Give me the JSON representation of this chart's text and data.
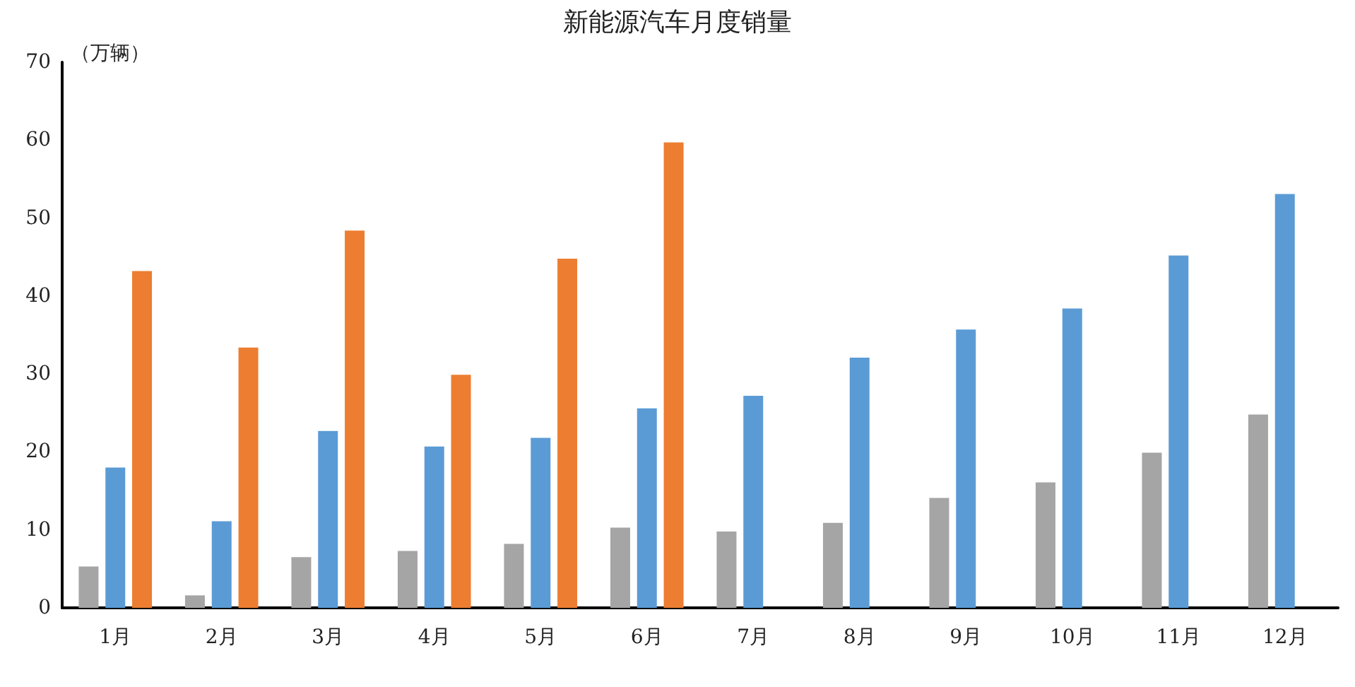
{
  "chart_data": {
    "type": "bar",
    "title": "新能源汽车月度销量",
    "ylabel": "（万辆）",
    "categories": [
      "1月",
      "2月",
      "3月",
      "4月",
      "5月",
      "6月",
      "7月",
      "8月",
      "9月",
      "10月",
      "11月",
      "12月"
    ],
    "series": [
      {
        "color": "#a5a5a5",
        "values": [
          5.3,
          1.6,
          6.5,
          7.3,
          8.2,
          10.3,
          9.8,
          10.9,
          14.1,
          16.1,
          19.9,
          24.8
        ]
      },
      {
        "color": "#5b9bd5",
        "values": [
          18.0,
          11.1,
          22.7,
          20.7,
          21.8,
          25.6,
          27.2,
          32.1,
          35.7,
          38.4,
          45.2,
          53.1
        ]
      },
      {
        "color": "#ed7d31",
        "values": [
          43.2,
          33.4,
          48.4,
          29.9,
          44.8,
          59.7,
          null,
          null,
          null,
          null,
          null,
          null
        ]
      }
    ],
    "ylim": [
      0,
      70
    ],
    "yticks": [
      0,
      10,
      20,
      30,
      40,
      50,
      60,
      70
    ],
    "grid": false
  }
}
